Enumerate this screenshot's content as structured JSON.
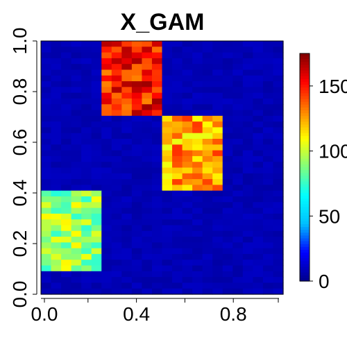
{
  "chart_data": {
    "type": "heatmap",
    "title": "X_GAM",
    "xlabel": "",
    "ylabel": "",
    "xlim": [
      0,
      1
    ],
    "ylim": [
      0,
      1
    ],
    "x_ticks": [
      0.0,
      0.2,
      0.4,
      0.6,
      0.8,
      1.0
    ],
    "x_tick_labels": [
      "0.0",
      "",
      "0.4",
      "",
      "0.8",
      ""
    ],
    "y_ticks": [
      0.0,
      0.2,
      0.4,
      0.6,
      0.8,
      1.0
    ],
    "y_tick_labels": [
      "0.0",
      "0.2",
      "0.4",
      "0.6",
      "0.8",
      "1.0"
    ],
    "colorbar": {
      "min": 0,
      "max": 175,
      "ticks": [
        0,
        50,
        100,
        150
      ],
      "tick_labels": [
        "0",
        "50",
        "100",
        "150"
      ],
      "colors": [
        "#00008B",
        "#0000FF",
        "#00BFFF",
        "#00FFFF",
        "#7FFF7F",
        "#FFFF00",
        "#FF7F00",
        "#FF0000",
        "#7F0000"
      ]
    },
    "background_level": 5,
    "grid_cols": 24,
    "grid_rows": 44,
    "blocks": [
      {
        "name": "block_low_left",
        "x": [
          0.0,
          0.25
        ],
        "y": [
          0.1,
          0.4
        ],
        "mean_value": 92
      },
      {
        "name": "block_mid",
        "x": [
          0.5,
          0.75
        ],
        "y": [
          0.4,
          0.7
        ],
        "mean_value": 125
      },
      {
        "name": "block_top",
        "x": [
          0.25,
          0.5
        ],
        "y": [
          0.7,
          1.0
        ],
        "mean_value": 150
      }
    ]
  }
}
